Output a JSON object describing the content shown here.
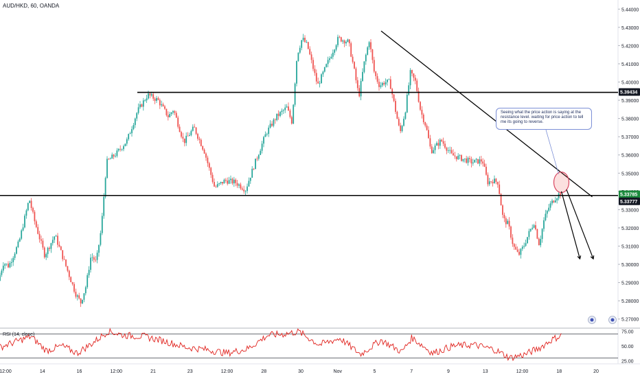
{
  "legend": "AUD/HKD, 60, OANDA",
  "rsi_legend": "RSI (14, close)",
  "annotation": "Seeing what the price action is saying at the resistance level. waiting for price action to tell me its going to reverse.",
  "colors": {
    "up": "#26a69a",
    "down": "#ef5350",
    "rsi_line": "#e0201b",
    "trend_line": "#000000",
    "support_label_bg": "#1b8a3c",
    "label_bg": "#131722",
    "callout_border": "#7b8fd6",
    "circle": "#d9455f"
  },
  "chart_data": [
    {
      "type": "candlestick",
      "title": "AUD/HKD, 60, OANDA",
      "ylim": [
        5.265,
        5.445
      ],
      "y_ticks": [
        "5.44000",
        "5.43000",
        "5.42000",
        "5.41000",
        "5.40000",
        "5.39000",
        "5.38000",
        "5.37000",
        "5.36000",
        "5.35000",
        "5.34000",
        "5.33000",
        "5.32000",
        "5.31000",
        "5.30000",
        "5.29000",
        "5.28000",
        "5.27000"
      ],
      "x_ticks": [
        "12:00",
        "14",
        "16",
        "12:00",
        "21",
        "23",
        "12:00",
        "28",
        "30",
        "Nov",
        "5",
        "7",
        "9",
        "13",
        "12:00",
        "18",
        "20"
      ],
      "price_path": [
        {
          "t": 0.0,
          "p": 5.291
        },
        {
          "t": 0.5,
          "p": 5.301
        },
        {
          "t": 1.0,
          "p": 5.299
        },
        {
          "t": 2.0,
          "p": 5.312
        },
        {
          "t": 3.0,
          "p": 5.336
        },
        {
          "t": 3.5,
          "p": 5.324
        },
        {
          "t": 4.5,
          "p": 5.305
        },
        {
          "t": 5.5,
          "p": 5.316
        },
        {
          "t": 6.5,
          "p": 5.3
        },
        {
          "t": 7.5,
          "p": 5.284
        },
        {
          "t": 8.0,
          "p": 5.279
        },
        {
          "t": 8.5,
          "p": 5.288
        },
        {
          "t": 9.0,
          "p": 5.305
        },
        {
          "t": 9.5,
          "p": 5.301
        },
        {
          "t": 10.0,
          "p": 5.32
        },
        {
          "t": 10.5,
          "p": 5.356
        },
        {
          "t": 11.5,
          "p": 5.361
        },
        {
          "t": 12.5,
          "p": 5.368
        },
        {
          "t": 13.5,
          "p": 5.384
        },
        {
          "t": 14.5,
          "p": 5.393
        },
        {
          "t": 15.5,
          "p": 5.39
        },
        {
          "t": 16.5,
          "p": 5.381
        },
        {
          "t": 17.0,
          "p": 5.385
        },
        {
          "t": 18.0,
          "p": 5.367
        },
        {
          "t": 19.0,
          "p": 5.375
        },
        {
          "t": 20.0,
          "p": 5.362
        },
        {
          "t": 21.0,
          "p": 5.342
        },
        {
          "t": 22.0,
          "p": 5.346
        },
        {
          "t": 23.0,
          "p": 5.345
        },
        {
          "t": 24.0,
          "p": 5.341
        },
        {
          "t": 25.0,
          "p": 5.357
        },
        {
          "t": 26.0,
          "p": 5.372
        },
        {
          "t": 27.0,
          "p": 5.381
        },
        {
          "t": 28.0,
          "p": 5.386
        },
        {
          "t": 28.5,
          "p": 5.378
        },
        {
          "t": 29.0,
          "p": 5.415
        },
        {
          "t": 29.5,
          "p": 5.424
        },
        {
          "t": 30.0,
          "p": 5.42
        },
        {
          "t": 31.0,
          "p": 5.398
        },
        {
          "t": 32.0,
          "p": 5.411
        },
        {
          "t": 33.0,
          "p": 5.424
        },
        {
          "t": 34.0,
          "p": 5.422
        },
        {
          "t": 34.5,
          "p": 5.408
        },
        {
          "t": 35.0,
          "p": 5.392
        },
        {
          "t": 35.5,
          "p": 5.41
        },
        {
          "t": 36.0,
          "p": 5.423
        },
        {
          "t": 36.5,
          "p": 5.405
        },
        {
          "t": 37.0,
          "p": 5.398
        },
        {
          "t": 37.5,
          "p": 5.4
        },
        {
          "t": 38.0,
          "p": 5.4
        },
        {
          "t": 38.5,
          "p": 5.386
        },
        {
          "t": 39.0,
          "p": 5.372
        },
        {
          "t": 39.5,
          "p": 5.384
        },
        {
          "t": 40.0,
          "p": 5.405
        },
        {
          "t": 40.5,
          "p": 5.4
        },
        {
          "t": 41.0,
          "p": 5.384
        },
        {
          "t": 41.5,
          "p": 5.376
        },
        {
          "t": 42.0,
          "p": 5.362
        },
        {
          "t": 43.0,
          "p": 5.368
        },
        {
          "t": 44.0,
          "p": 5.36
        },
        {
          "t": 45.0,
          "p": 5.358
        },
        {
          "t": 46.0,
          "p": 5.356
        },
        {
          "t": 47.0,
          "p": 5.357
        },
        {
          "t": 47.5,
          "p": 5.345
        },
        {
          "t": 48.0,
          "p": 5.346
        },
        {
          "t": 48.5,
          "p": 5.345
        },
        {
          "t": 49.0,
          "p": 5.325
        },
        {
          "t": 49.5,
          "p": 5.322
        },
        {
          "t": 50.0,
          "p": 5.31
        },
        {
          "t": 50.5,
          "p": 5.305
        },
        {
          "t": 51.0,
          "p": 5.31
        },
        {
          "t": 51.5,
          "p": 5.317
        },
        {
          "t": 52.0,
          "p": 5.323
        },
        {
          "t": 52.5,
          "p": 5.311
        },
        {
          "t": 53.0,
          "p": 5.325
        },
        {
          "t": 53.5,
          "p": 5.332
        },
        {
          "t": 54.0,
          "p": 5.336
        },
        {
          "t": 54.5,
          "p": 5.339
        }
      ],
      "resistance_level": 5.39434,
      "support_level": 5.33777,
      "price_labels": [
        "5.39434",
        "5.33785",
        "5.33777"
      ],
      "trend_line": [
        {
          "t": 37.0,
          "p": 5.428
        },
        {
          "t": 57.5,
          "p": 5.337
        }
      ],
      "projection_arrows": [
        {
          "from": {
            "t": 54.5,
            "p": 5.34
          },
          "to": {
            "t": 56.3,
            "p": 5.303
          }
        },
        {
          "from": {
            "t": 55.0,
            "p": 5.341
          },
          "to": {
            "t": 57.6,
            "p": 5.303
          }
        }
      ],
      "circle_at": {
        "t": 54.5,
        "p": 5.345
      }
    },
    {
      "type": "line",
      "title": "RSI (14, close)",
      "ylim": [
        20,
        80
      ],
      "y_ticks": [
        "75.00",
        "50.00",
        "25.00"
      ],
      "levels": [
        70,
        30
      ],
      "rsi_path": [
        {
          "t": 0,
          "v": 48
        },
        {
          "t": 2,
          "v": 60
        },
        {
          "t": 3,
          "v": 66
        },
        {
          "t": 4.5,
          "v": 42
        },
        {
          "t": 6,
          "v": 50
        },
        {
          "t": 7.5,
          "v": 38
        },
        {
          "t": 9,
          "v": 55
        },
        {
          "t": 10.5,
          "v": 75
        },
        {
          "t": 12,
          "v": 68
        },
        {
          "t": 14,
          "v": 66
        },
        {
          "t": 16,
          "v": 58
        },
        {
          "t": 18,
          "v": 48
        },
        {
          "t": 20,
          "v": 44
        },
        {
          "t": 22,
          "v": 38
        },
        {
          "t": 24,
          "v": 45
        },
        {
          "t": 26,
          "v": 68
        },
        {
          "t": 27.5,
          "v": 70
        },
        {
          "t": 29,
          "v": 74
        },
        {
          "t": 31,
          "v": 52
        },
        {
          "t": 33,
          "v": 63
        },
        {
          "t": 35,
          "v": 36
        },
        {
          "t": 37,
          "v": 60
        },
        {
          "t": 39,
          "v": 40
        },
        {
          "t": 40,
          "v": 64
        },
        {
          "t": 42,
          "v": 38
        },
        {
          "t": 44,
          "v": 50
        },
        {
          "t": 46,
          "v": 52
        },
        {
          "t": 48,
          "v": 44
        },
        {
          "t": 49.5,
          "v": 30
        },
        {
          "t": 51,
          "v": 36
        },
        {
          "t": 52.5,
          "v": 48
        },
        {
          "t": 53.5,
          "v": 60
        },
        {
          "t": 54.5,
          "v": 68
        }
      ]
    }
  ]
}
